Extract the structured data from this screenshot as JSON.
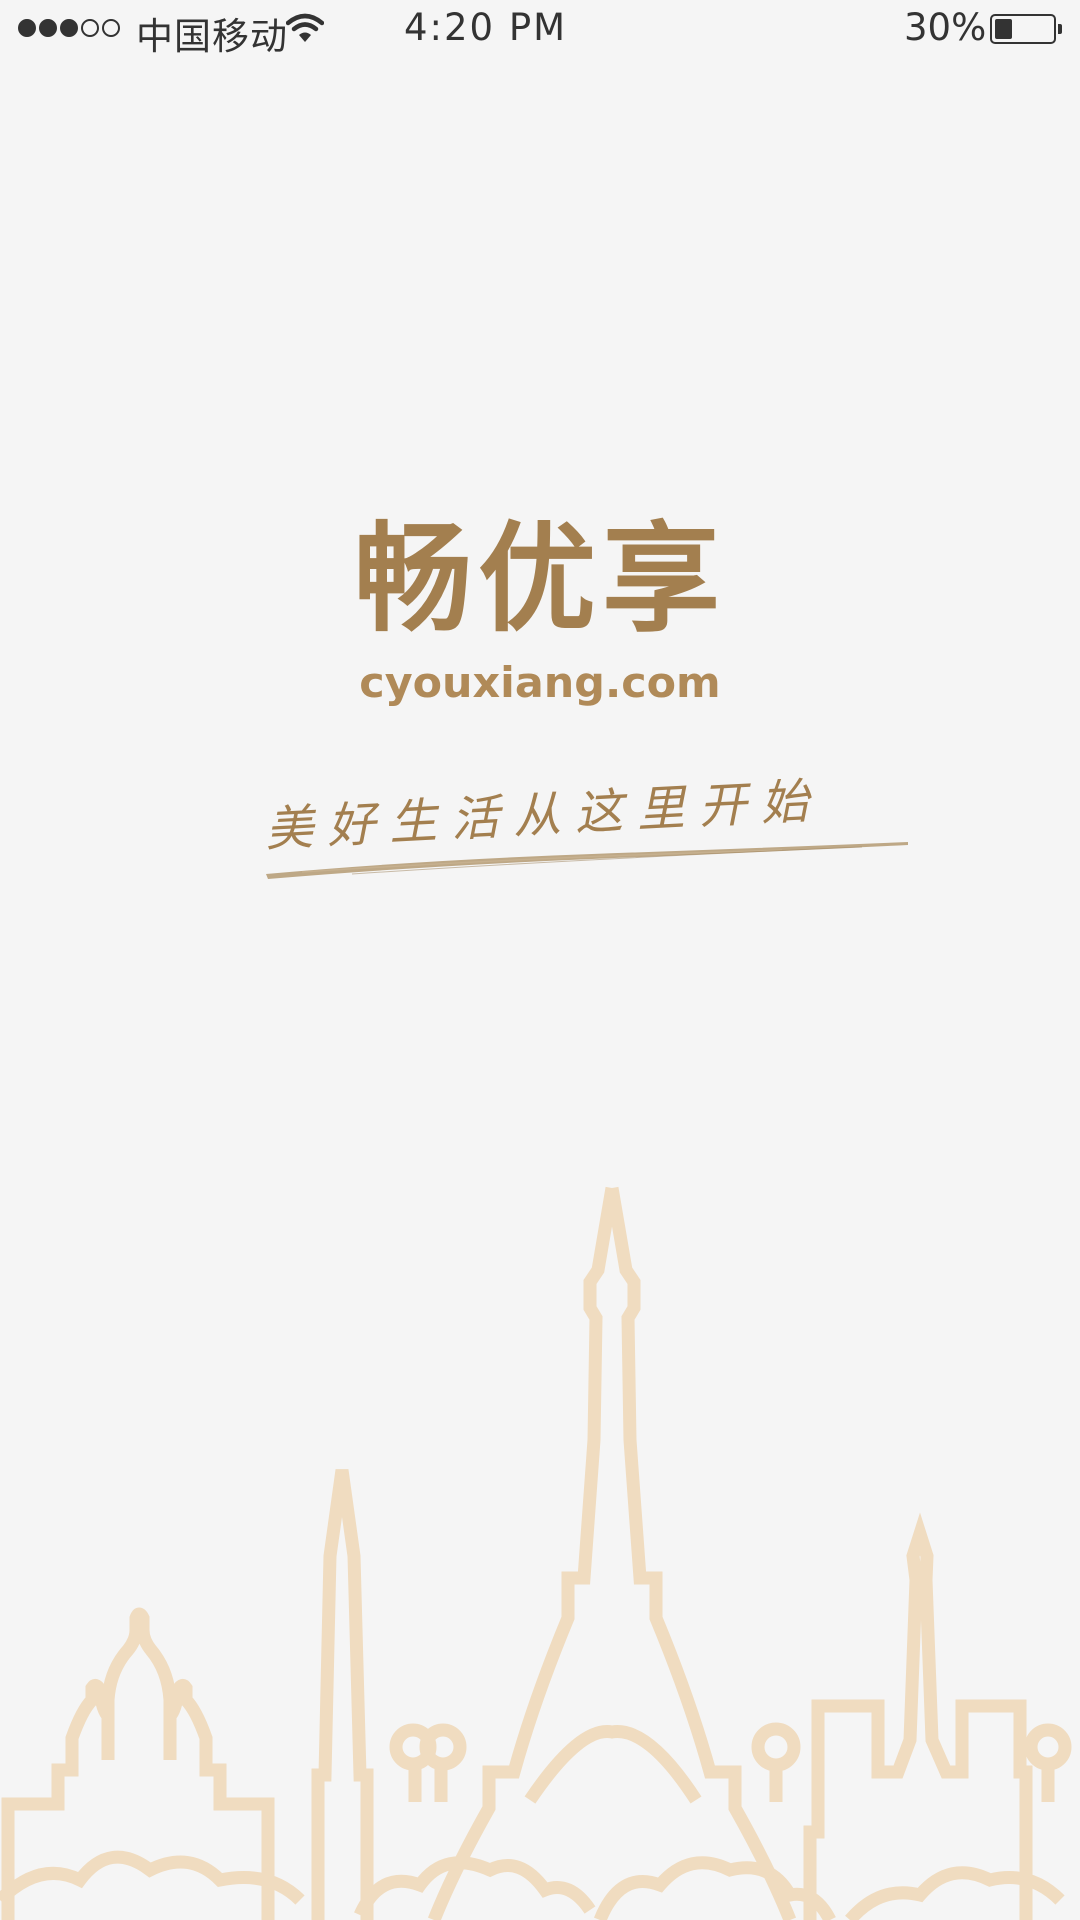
{
  "status_bar": {
    "carrier": "中国移动",
    "time": "4:20 PM",
    "battery_percent_text": "30%",
    "battery_level": 0.3,
    "signal_bars_filled": 3,
    "signal_bars_total": 5
  },
  "splash": {
    "app_name": "畅优享",
    "domain": "cyouxiang.com",
    "slogan": "美好生活从这里开始"
  },
  "colors": {
    "background": "#f5f5f5",
    "brand_brown": "#a37f4f",
    "skyline_tan": "#f0dcc0"
  }
}
